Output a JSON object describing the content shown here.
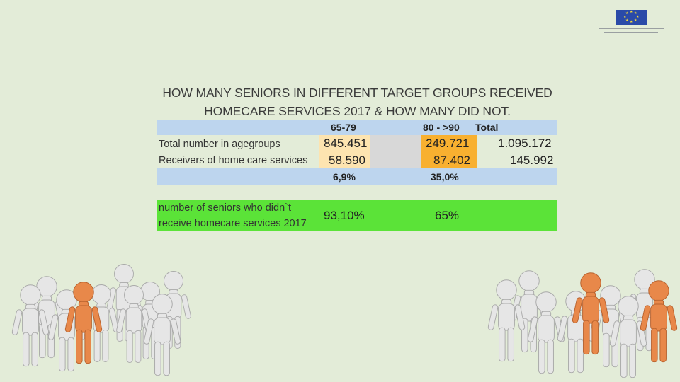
{
  "table": {
    "title_line1": "HOW MANY SENIORS IN DIFFERENT TARGET GROUPS RECEIVED",
    "title_line2": "HOMECARE SERVICES 2017 & HOW MANY DID NOT.",
    "headers": {
      "age1": "65-79",
      "age2": "80 - >90",
      "total": "Total"
    },
    "rows": [
      {
        "label": "Total number in agegroups",
        "age1": "845.451",
        "age2": "249.721",
        "total": "1.095.172"
      },
      {
        "label": "Receivers of home care services",
        "age1": "58.590",
        "age2": "87.402",
        "total": "145.992"
      }
    ],
    "percent_row": {
      "age1": "6,9%",
      "age2": "35,0%"
    },
    "not_received": {
      "label_line1": "number of seniors who didn`t",
      "label_line2": "receive homecare services 2017",
      "age1": "93,10%",
      "age2": "65%"
    }
  },
  "colors": {
    "background": "#e3ecd8",
    "header_blue": "#bdd5ee",
    "highlight_light_orange": "#fde4b0",
    "highlight_orange": "#f8b030",
    "green": "#5be338",
    "figure_white": "#e8e8e8",
    "figure_orange": "#e8884a"
  },
  "icons": {
    "logo": "eu-flag-icon",
    "people": "stick-figure-icon"
  }
}
